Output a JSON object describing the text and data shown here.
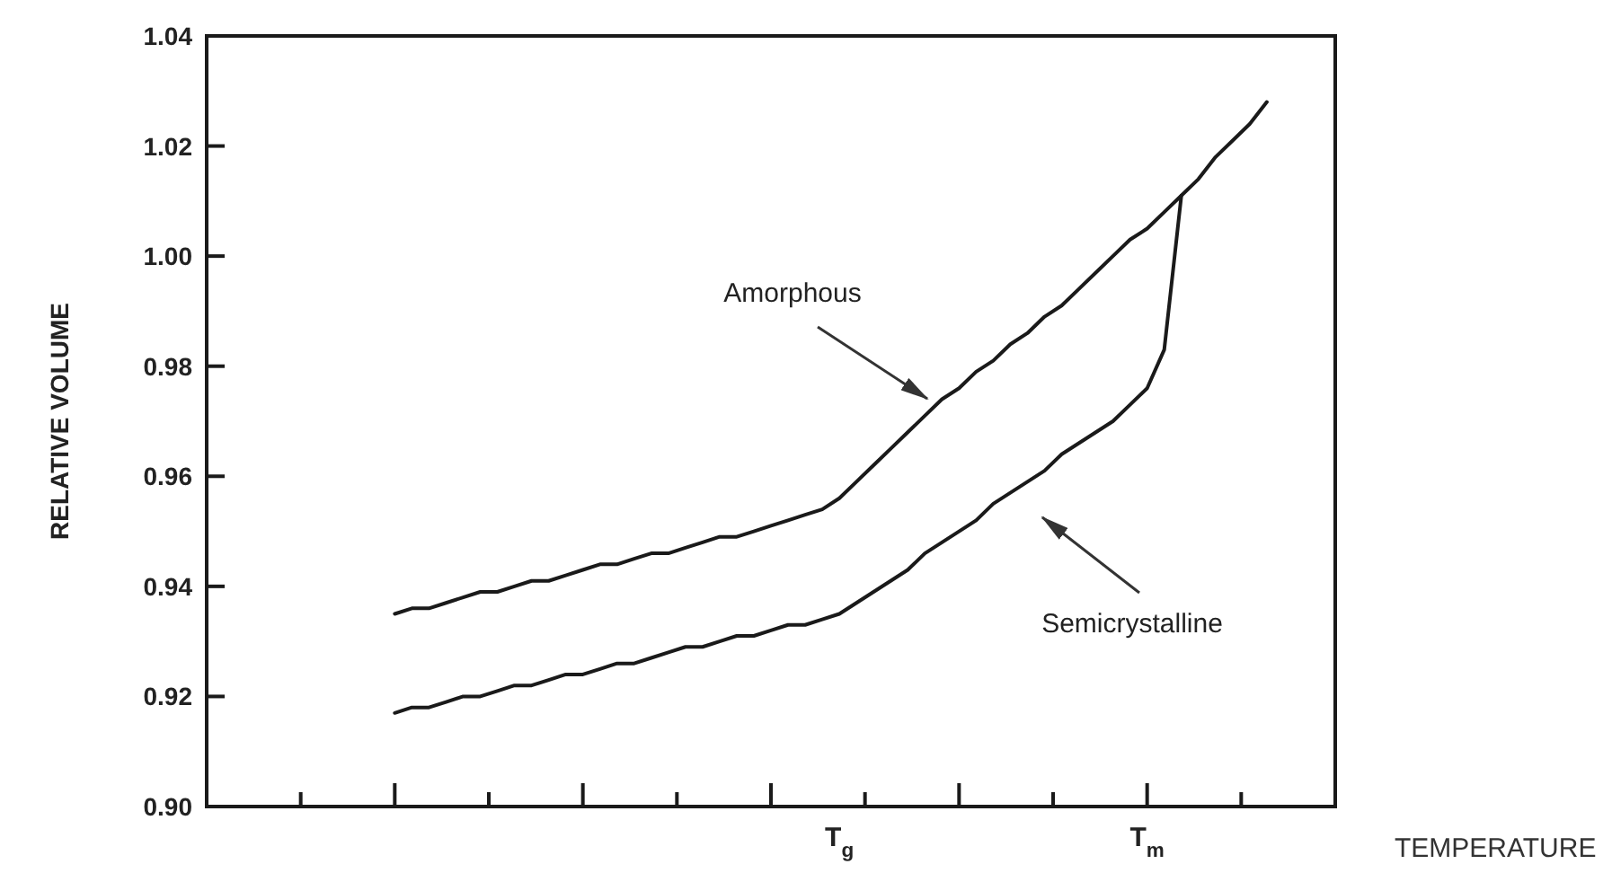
{
  "chart_data": {
    "type": "line",
    "xlabel": "TEMPERATURE",
    "ylabel": "RELATIVE VOLUME",
    "categories": [
      null,
      null,
      null,
      null,
      null,
      null,
      null,
      null,
      null,
      null,
      null,
      null,
      null,
      null,
      null,
      null,
      null,
      null,
      null,
      null,
      null,
      null,
      null,
      null,
      null,
      null,
      null,
      null,
      null,
      null,
      null,
      null,
      null,
      null,
      null,
      null,
      null,
      "T$_{g}$",
      null,
      null,
      null,
      null,
      null,
      null,
      null,
      null,
      null,
      null,
      null,
      null,
      null,
      null,
      null,
      null,
      null,
      "T$_{m}$",
      null,
      null,
      null,
      null,
      null,
      null,
      null,
      null,
      null,
      null,
      null
    ],
    "ylim": [
      0.9,
      1.04
    ],
    "yticks": [
      {
        "value": 0.9,
        "label": "0.90"
      },
      {
        "value": 0.92,
        "label": "0.92"
      },
      {
        "value": 0.94,
        "label": "0.94"
      },
      {
        "value": 0.96,
        "label": "0.96"
      },
      {
        "value": 0.98,
        "label": "0.98"
      },
      {
        "value": 1.0,
        "label": "1.00"
      },
      {
        "value": 1.02,
        "label": "1.02"
      },
      {
        "value": 1.04,
        "label": "1.04"
      }
    ],
    "grid": false,
    "marker": "none",
    "line_style": "solid",
    "series": [
      {
        "color": "#1a1a1a",
        "values": [
          null,
          null,
          null,
          null,
          null,
          null,
          null,
          null,
          null,
          null,
          null,
          0.935,
          0.936,
          0.936,
          0.937,
          0.938,
          0.939,
          0.939,
          0.94,
          0.941,
          0.941,
          0.942,
          0.943,
          0.944,
          0.944,
          0.945,
          0.946,
          0.946,
          0.947,
          0.948,
          0.949,
          0.949,
          0.95,
          0.951,
          0.952,
          0.953,
          0.954,
          0.956,
          0.959,
          0.962,
          0.965,
          0.968,
          0.971,
          0.974,
          0.976,
          0.979,
          0.981,
          0.984,
          0.986,
          0.989,
          0.991,
          0.994,
          0.997,
          1.0,
          1.003,
          1.005,
          1.008,
          1.011,
          1.014,
          1.018,
          1.021,
          1.024,
          1.028,
          null,
          null,
          null,
          null
        ]
      },
      {
        "color": "#1a1a1a",
        "values": [
          null,
          null,
          null,
          null,
          null,
          null,
          null,
          null,
          null,
          null,
          null,
          0.917,
          0.918,
          0.918,
          0.919,
          0.92,
          0.92,
          0.921,
          0.922,
          0.922,
          0.923,
          0.924,
          0.924,
          0.925,
          0.926,
          0.926,
          0.927,
          0.928,
          0.929,
          0.929,
          0.93,
          0.931,
          0.931,
          0.932,
          0.933,
          0.933,
          0.934,
          0.935,
          0.937,
          0.939,
          0.941,
          0.943,
          0.946,
          0.948,
          0.95,
          0.952,
          0.955,
          0.957,
          0.959,
          0.961,
          0.964,
          0.966,
          0.968,
          0.97,
          0.973,
          0.976,
          0.983,
          1.011,
          null,
          null,
          null,
          null,
          null,
          null,
          null,
          null,
          null
        ]
      }
    ],
    "annotations": [
      "Amorphous",
      "Semicrystalline"
    ]
  }
}
